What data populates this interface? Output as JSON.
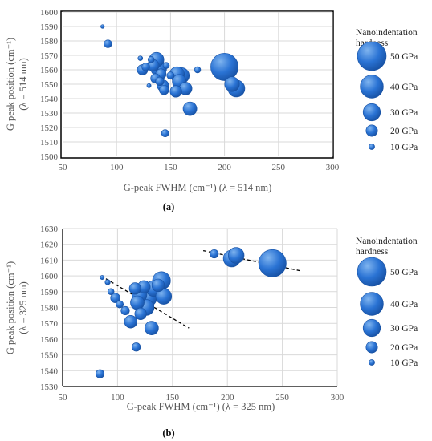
{
  "panels": [
    {
      "label": "(a)",
      "chart_data": {
        "type": "scatter",
        "subtype": "bubble",
        "xlabel": "G-peak FWHM (cm⁻¹) (λ = 514 nm)",
        "ylabel_lines": [
          "G peak position (cm⁻¹)",
          "(λ = 514 nm)"
        ],
        "xlim": [
          50,
          300
        ],
        "ylim": [
          1500,
          1600
        ],
        "xticks": [
          50,
          100,
          150,
          200,
          250,
          300
        ],
        "yticks": [
          1500,
          1510,
          1520,
          1530,
          1540,
          1550,
          1560,
          1570,
          1580,
          1590,
          1600
        ],
        "grid": true,
        "legend_position": "right",
        "legend_title_lines": [
          "Nanoindentation",
          "hardness"
        ],
        "legend_items": [
          {
            "label": "50 GPa",
            "size": 50
          },
          {
            "label": "40 GPa",
            "size": 40
          },
          {
            "label": "30 GPa",
            "size": 30
          },
          {
            "label": "20 GPa",
            "size": 20
          },
          {
            "label": "10 GPa",
            "size": 10
          }
        ],
        "points": [
          {
            "x": 87,
            "y": 1590,
            "size": 7
          },
          {
            "x": 92,
            "y": 1578,
            "size": 15
          },
          {
            "x": 122,
            "y": 1568,
            "size": 9
          },
          {
            "x": 124,
            "y": 1560,
            "size": 20
          },
          {
            "x": 127,
            "y": 1562,
            "size": 15
          },
          {
            "x": 130,
            "y": 1549,
            "size": 8
          },
          {
            "x": 132,
            "y": 1567,
            "size": 12
          },
          {
            "x": 134,
            "y": 1563,
            "size": 22
          },
          {
            "x": 136,
            "y": 1554,
            "size": 18
          },
          {
            "x": 137,
            "y": 1567,
            "size": 28
          },
          {
            "x": 139,
            "y": 1561,
            "size": 30
          },
          {
            "x": 140,
            "y": 1552,
            "size": 16
          },
          {
            "x": 141,
            "y": 1557,
            "size": 20
          },
          {
            "x": 143,
            "y": 1549,
            "size": 22
          },
          {
            "x": 144,
            "y": 1546,
            "size": 18
          },
          {
            "x": 145,
            "y": 1516,
            "size": 14
          },
          {
            "x": 146,
            "y": 1563,
            "size": 12
          },
          {
            "x": 150,
            "y": 1556,
            "size": 14
          },
          {
            "x": 155,
            "y": 1545,
            "size": 22
          },
          {
            "x": 156,
            "y": 1557,
            "size": 28
          },
          {
            "x": 158,
            "y": 1552,
            "size": 26
          },
          {
            "x": 160,
            "y": 1556,
            "size": 30
          },
          {
            "x": 164,
            "y": 1547,
            "size": 24
          },
          {
            "x": 168,
            "y": 1533,
            "size": 26
          },
          {
            "x": 175,
            "y": 1560,
            "size": 12
          },
          {
            "x": 200,
            "y": 1562,
            "size": 52
          },
          {
            "x": 207,
            "y": 1550,
            "size": 28
          },
          {
            "x": 211,
            "y": 1547,
            "size": 32
          }
        ]
      }
    },
    {
      "label": "(b)",
      "chart_data": {
        "type": "scatter",
        "subtype": "bubble",
        "xlabel": "G-peak FWHM (cm⁻¹) (λ = 325 nm)",
        "ylabel_lines": [
          "G peak position (cm⁻¹)",
          "(λ = 325 nm)"
        ],
        "xlim": [
          50,
          300
        ],
        "ylim": [
          1530,
          1630
        ],
        "xticks": [
          50,
          100,
          150,
          200,
          250,
          300
        ],
        "yticks": [
          1530,
          1540,
          1550,
          1560,
          1570,
          1580,
          1590,
          1600,
          1610,
          1620,
          1630
        ],
        "grid": true,
        "legend_position": "right",
        "legend_title_lines": [
          "Nanoindentation",
          "hardness"
        ],
        "legend_items": [
          {
            "label": "50 GPa",
            "size": 50
          },
          {
            "label": "40 GPa",
            "size": 40
          },
          {
            "label": "30 GPa",
            "size": 30
          },
          {
            "label": "20 GPa",
            "size": 20
          },
          {
            "label": "10 GPa",
            "size": 10
          }
        ],
        "points": [
          {
            "x": 84,
            "y": 1538,
            "size": 16
          },
          {
            "x": 86,
            "y": 1599,
            "size": 8
          },
          {
            "x": 91,
            "y": 1596,
            "size": 10
          },
          {
            "x": 94,
            "y": 1590,
            "size": 12
          },
          {
            "x": 98,
            "y": 1586,
            "size": 18
          },
          {
            "x": 102,
            "y": 1582,
            "size": 14
          },
          {
            "x": 107,
            "y": 1578,
            "size": 16
          },
          {
            "x": 112,
            "y": 1571,
            "size": 24
          },
          {
            "x": 116,
            "y": 1592,
            "size": 22
          },
          {
            "x": 117,
            "y": 1555,
            "size": 16
          },
          {
            "x": 118,
            "y": 1583,
            "size": 26
          },
          {
            "x": 120,
            "y": 1588,
            "size": 28
          },
          {
            "x": 121,
            "y": 1576,
            "size": 22
          },
          {
            "x": 124,
            "y": 1593,
            "size": 24
          },
          {
            "x": 126,
            "y": 1580,
            "size": 30
          },
          {
            "x": 128,
            "y": 1586,
            "size": 32
          },
          {
            "x": 131,
            "y": 1567,
            "size": 26
          },
          {
            "x": 133,
            "y": 1592,
            "size": 30
          },
          {
            "x": 137,
            "y": 1594,
            "size": 24
          },
          {
            "x": 140,
            "y": 1597,
            "size": 34
          },
          {
            "x": 142,
            "y": 1587,
            "size": 30
          },
          {
            "x": 188,
            "y": 1614,
            "size": 16
          },
          {
            "x": 204,
            "y": 1611,
            "size": 32
          },
          {
            "x": 208,
            "y": 1613,
            "size": 30
          },
          {
            "x": 241,
            "y": 1608,
            "size": 52
          }
        ],
        "trendlines": [
          {
            "x": [
              85,
              165
            ],
            "y": [
              1600,
              1567
            ]
          },
          {
            "x": [
              178,
              268
            ],
            "y": [
              1616,
              1603
            ]
          }
        ]
      }
    }
  ],
  "colors": {
    "bubble_light": "#7fb4ef",
    "bubble": "#2a73d4",
    "bubble_dark": "#1751a3",
    "grid": "#d9d9d9",
    "axis": "#000000",
    "text": "#555555"
  }
}
